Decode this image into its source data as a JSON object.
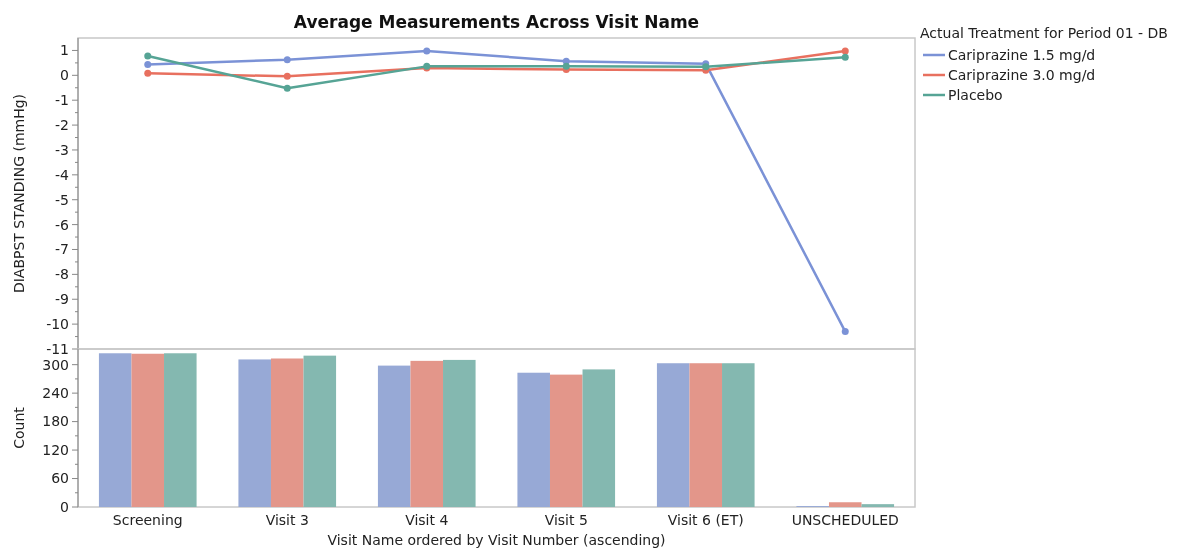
{
  "chart_data": [
    {
      "type": "line",
      "title": "Average Measurements Across Visit Name",
      "ylabel": "DIABPST STANDING (mmHg)",
      "legend_title": "Actual Treatment for Period 01 - DB",
      "legend": "right",
      "marker": "circle",
      "tick_labels": "y",
      "categories": [
        null,
        null,
        null,
        null,
        null,
        null
      ],
      "ylim": [
        -11,
        1.5
      ],
      "yticks": [
        -11,
        -10,
        -9,
        -8,
        -7,
        -6,
        -5,
        -4,
        -3,
        -2,
        -1,
        0,
        1
      ],
      "series": [
        {
          "name": "Cariprazine 1.5 mg/d",
          "color": "#7b92d6",
          "values": [
            0.43,
            0.63,
            0.98,
            0.57,
            0.47,
            -10.3
          ]
        },
        {
          "name": "Cariprazine 3.0 mg/d",
          "color": "#e8705f",
          "values": [
            0.08,
            -0.04,
            0.29,
            0.23,
            0.2,
            0.98
          ]
        },
        {
          "name": "Placebo",
          "color": "#56a495",
          "values": [
            0.78,
            -0.52,
            0.36,
            0.36,
            0.34,
            0.73
          ]
        }
      ]
    },
    {
      "type": "bar",
      "ylabel": "Count",
      "xlabel": "Visit Name ordered by Visit Number (ascending)",
      "categories": [
        "Screening",
        "Visit 3",
        "Visit 4",
        "Visit 5",
        "Visit 6 (ET)",
        "UNSCHEDULED"
      ],
      "ylim": [
        0,
        333
      ],
      "yticks": [
        0,
        60,
        120,
        180,
        240,
        300
      ],
      "series": [
        {
          "color": "#97a9d6",
          "values": [
            324,
            311,
            298,
            283,
            303,
            2
          ]
        },
        {
          "color": "#e3968a",
          "values": [
            323,
            313,
            308,
            279,
            303,
            10
          ]
        },
        {
          "color": "#84b8b0",
          "values": [
            324,
            319,
            310,
            290,
            303,
            6
          ]
        }
      ]
    }
  ]
}
